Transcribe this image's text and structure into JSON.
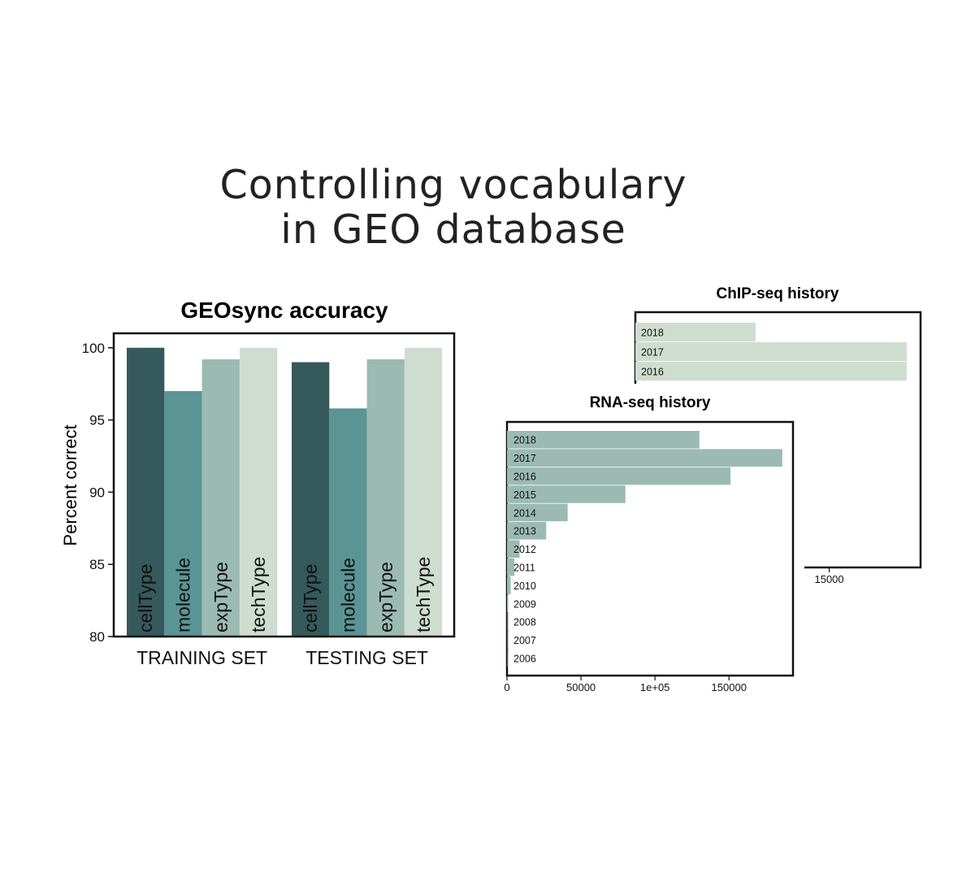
{
  "slide": {
    "title_line1": "Controlling vocabulary",
    "title_line2": "in GEO database"
  },
  "colors": {
    "cellType": "#36595b",
    "molecule": "#5a9494",
    "expType": "#9bbab2",
    "techType": "#cfddd1",
    "history": "#9bbab2",
    "history_light": "#cfddd1"
  },
  "chart_data": [
    {
      "type": "bar",
      "title": "GEOsync accuracy",
      "xlabel": "",
      "ylabel": "Percent correct",
      "ylim": [
        80,
        101
      ],
      "yticks": [
        80,
        85,
        90,
        95,
        100
      ],
      "categories": [
        "TRAINING SET",
        "TESTING SET"
      ],
      "series": [
        {
          "name": "cellType",
          "values": [
            100,
            99
          ]
        },
        {
          "name": "molecule",
          "values": [
            97,
            95.8
          ]
        },
        {
          "name": "expType",
          "values": [
            99.2,
            99.2
          ]
        },
        {
          "name": "techType",
          "values": [
            100,
            100
          ]
        }
      ],
      "bar_labels_inside": true
    },
    {
      "type": "bar",
      "orientation": "horizontal",
      "title": "RNA-seq history",
      "categories": [
        "2018",
        "2017",
        "2016",
        "2015",
        "2014",
        "2013",
        "2012",
        "2011",
        "2010",
        "2009",
        "2008",
        "2007",
        "2006"
      ],
      "values": [
        130000,
        186000,
        151000,
        80000,
        41000,
        26500,
        8500,
        5000,
        2500,
        800,
        300,
        100,
        50
      ],
      "xlim": [
        0,
        195000
      ],
      "xticks": [
        0,
        50000,
        100000,
        150000
      ],
      "xtick_labels": [
        "0",
        "50000",
        "1e+05",
        "150000"
      ]
    },
    {
      "type": "bar",
      "orientation": "horizontal",
      "title": "ChIP-seq history",
      "categories": [
        "2018",
        "2017",
        "2016"
      ],
      "values": [
        9300,
        21000,
        21000
      ],
      "xlim": [
        0,
        22000
      ],
      "xticks": [
        15000
      ],
      "xtick_labels": [
        "15000"
      ],
      "partially_hidden": true
    }
  ]
}
